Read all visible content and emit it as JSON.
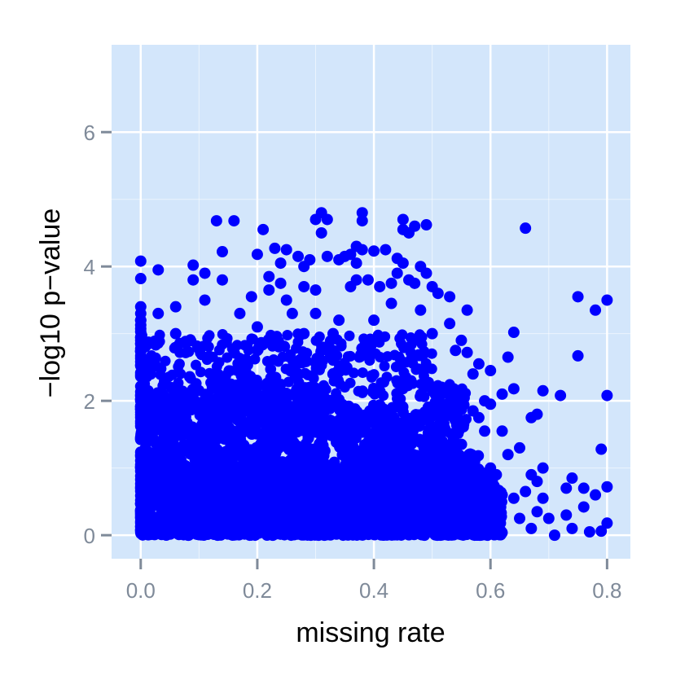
{
  "chart_data": {
    "type": "scatter",
    "title": "",
    "xlabel": "missing rate",
    "ylabel": "−log10 p−value",
    "xlim": [
      -0.05,
      0.84
    ],
    "ylim": [
      -0.35,
      7.3
    ],
    "x_ticks": [
      0.0,
      0.2,
      0.4,
      0.6,
      0.8
    ],
    "x_tick_labels": [
      "0.0",
      "0.2",
      "0.4",
      "0.6",
      "0.8"
    ],
    "y_ticks": [
      0,
      2,
      4,
      6
    ],
    "y_tick_labels": [
      "0",
      "2",
      "4",
      "6"
    ],
    "grid": true,
    "colors": {
      "panel": "#d3e6fb",
      "grid": "#ffffff",
      "point": "#0000ff",
      "tick": "#7f8a99"
    },
    "series": [
      {
        "points": [
          [
            0.0,
            4.08
          ],
          [
            0.0,
            3.82
          ],
          [
            0.0,
            3.4
          ],
          [
            0.0,
            3.3
          ],
          [
            0.0,
            3.2
          ],
          [
            0.0,
            2.9
          ],
          [
            0.03,
            3.95
          ],
          [
            0.03,
            3.3
          ],
          [
            0.06,
            3.4
          ],
          [
            0.06,
            3.0
          ],
          [
            0.09,
            4.02
          ],
          [
            0.09,
            3.8
          ],
          [
            0.11,
            3.9
          ],
          [
            0.11,
            3.5
          ],
          [
            0.13,
            4.68
          ],
          [
            0.14,
            4.22
          ],
          [
            0.14,
            3.8
          ],
          [
            0.16,
            4.68
          ],
          [
            0.17,
            3.3
          ],
          [
            0.19,
            3.55
          ],
          [
            0.2,
            4.18
          ],
          [
            0.2,
            3.1
          ],
          [
            0.2,
            2.75
          ],
          [
            0.21,
            4.55
          ],
          [
            0.22,
            3.85
          ],
          [
            0.22,
            3.65
          ],
          [
            0.23,
            4.27
          ],
          [
            0.24,
            3.75
          ],
          [
            0.24,
            4.05
          ],
          [
            0.25,
            4.25
          ],
          [
            0.25,
            3.5
          ],
          [
            0.26,
            3.3
          ],
          [
            0.27,
            4.15
          ],
          [
            0.28,
            4.0
          ],
          [
            0.28,
            3.7
          ],
          [
            0.28,
            3.0
          ],
          [
            0.29,
            4.1
          ],
          [
            0.3,
            4.7
          ],
          [
            0.3,
            3.65
          ],
          [
            0.3,
            3.3
          ],
          [
            0.31,
            4.8
          ],
          [
            0.31,
            4.5
          ],
          [
            0.32,
            4.7
          ],
          [
            0.32,
            4.15
          ],
          [
            0.33,
            3.0
          ],
          [
            0.34,
            4.1
          ],
          [
            0.34,
            3.2
          ],
          [
            0.35,
            4.15
          ],
          [
            0.36,
            4.18
          ],
          [
            0.36,
            3.7
          ],
          [
            0.37,
            4.3
          ],
          [
            0.37,
            4.05
          ],
          [
            0.37,
            3.8
          ],
          [
            0.38,
            4.8
          ],
          [
            0.38,
            4.68
          ],
          [
            0.38,
            4.25
          ],
          [
            0.39,
            3.8
          ],
          [
            0.4,
            4.23
          ],
          [
            0.4,
            3.2
          ],
          [
            0.41,
            3.7
          ],
          [
            0.42,
            4.25
          ],
          [
            0.43,
            3.45
          ],
          [
            0.43,
            3.75
          ],
          [
            0.44,
            4.12
          ],
          [
            0.44,
            3.9
          ],
          [
            0.45,
            4.7
          ],
          [
            0.45,
            4.55
          ],
          [
            0.45,
            4.05
          ],
          [
            0.46,
            4.5
          ],
          [
            0.46,
            3.8
          ],
          [
            0.47,
            4.6
          ],
          [
            0.47,
            3.75
          ],
          [
            0.48,
            4.0
          ],
          [
            0.48,
            3.35
          ],
          [
            0.49,
            4.62
          ],
          [
            0.49,
            3.9
          ],
          [
            0.5,
            3.7
          ],
          [
            0.5,
            3.0
          ],
          [
            0.51,
            3.6
          ],
          [
            0.53,
            3.55
          ],
          [
            0.53,
            3.15
          ],
          [
            0.54,
            2.75
          ],
          [
            0.55,
            2.9
          ],
          [
            0.56,
            3.35
          ],
          [
            0.56,
            2.72
          ],
          [
            0.57,
            2.4
          ],
          [
            0.57,
            1.85
          ],
          [
            0.58,
            2.55
          ],
          [
            0.58,
            1.75
          ],
          [
            0.59,
            2.0
          ],
          [
            0.59,
            1.55
          ],
          [
            0.6,
            2.45
          ],
          [
            0.6,
            1.95
          ],
          [
            0.6,
            1.0
          ],
          [
            0.61,
            0.9
          ],
          [
            0.62,
            2.1
          ],
          [
            0.62,
            1.55
          ],
          [
            0.62,
            0.6
          ],
          [
            0.63,
            2.65
          ],
          [
            0.63,
            1.2
          ],
          [
            0.64,
            3.02
          ],
          [
            0.64,
            2.18
          ],
          [
            0.64,
            0.55
          ],
          [
            0.65,
            1.3
          ],
          [
            0.65,
            0.25
          ],
          [
            0.66,
            4.57
          ],
          [
            0.66,
            0.65
          ],
          [
            0.67,
            1.75
          ],
          [
            0.67,
            0.9
          ],
          [
            0.67,
            0.1
          ],
          [
            0.68,
            1.8
          ],
          [
            0.68,
            0.8
          ],
          [
            0.68,
            0.35
          ],
          [
            0.69,
            2.15
          ],
          [
            0.69,
            1.0
          ],
          [
            0.69,
            0.55
          ],
          [
            0.7,
            0.25
          ],
          [
            0.71,
            0.0
          ],
          [
            0.72,
            2.08
          ],
          [
            0.73,
            0.7
          ],
          [
            0.73,
            0.3
          ],
          [
            0.74,
            0.85
          ],
          [
            0.74,
            0.1
          ],
          [
            0.75,
            2.67
          ],
          [
            0.75,
            3.55
          ],
          [
            0.76,
            0.7
          ],
          [
            0.76,
            0.42
          ],
          [
            0.77,
            0.05
          ],
          [
            0.78,
            3.35
          ],
          [
            0.78,
            0.6
          ],
          [
            0.79,
            1.28
          ],
          [
            0.79,
            0.06
          ],
          [
            0.8,
            3.5
          ],
          [
            0.8,
            2.08
          ],
          [
            0.8,
            0.72
          ],
          [
            0.8,
            0.18
          ]
        ]
      }
    ]
  }
}
